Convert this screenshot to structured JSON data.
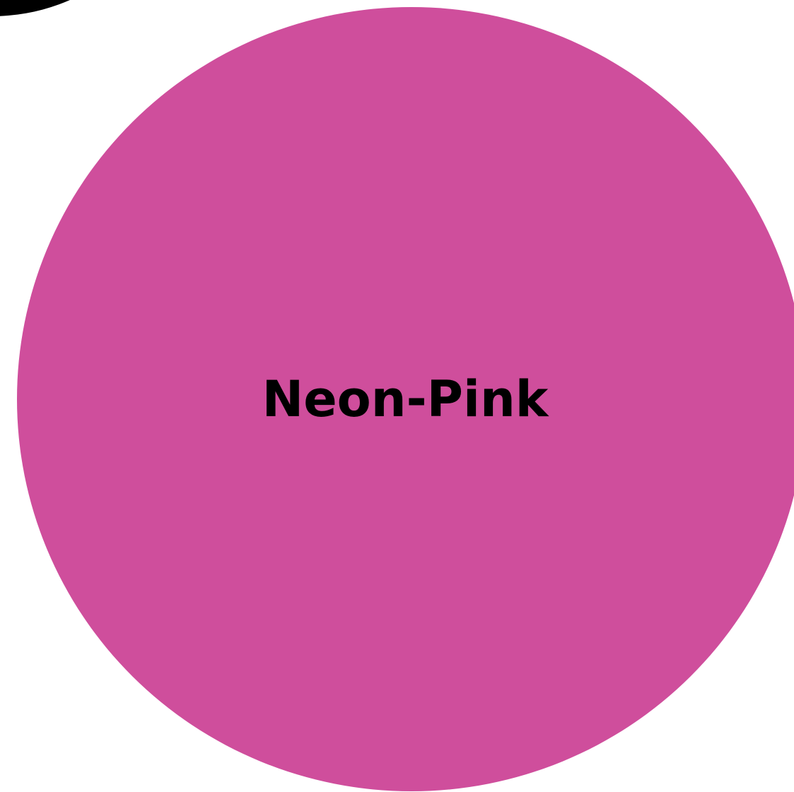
{
  "swatches": {
    "main": {
      "label": "Neon-Pink",
      "color": "#CF4E9C"
    },
    "neighbor_top_left": {
      "color": "#000000"
    },
    "neighbor_top_right": {
      "color": "#FFFFFF",
      "outline_color": "#B5B5B5"
    }
  }
}
